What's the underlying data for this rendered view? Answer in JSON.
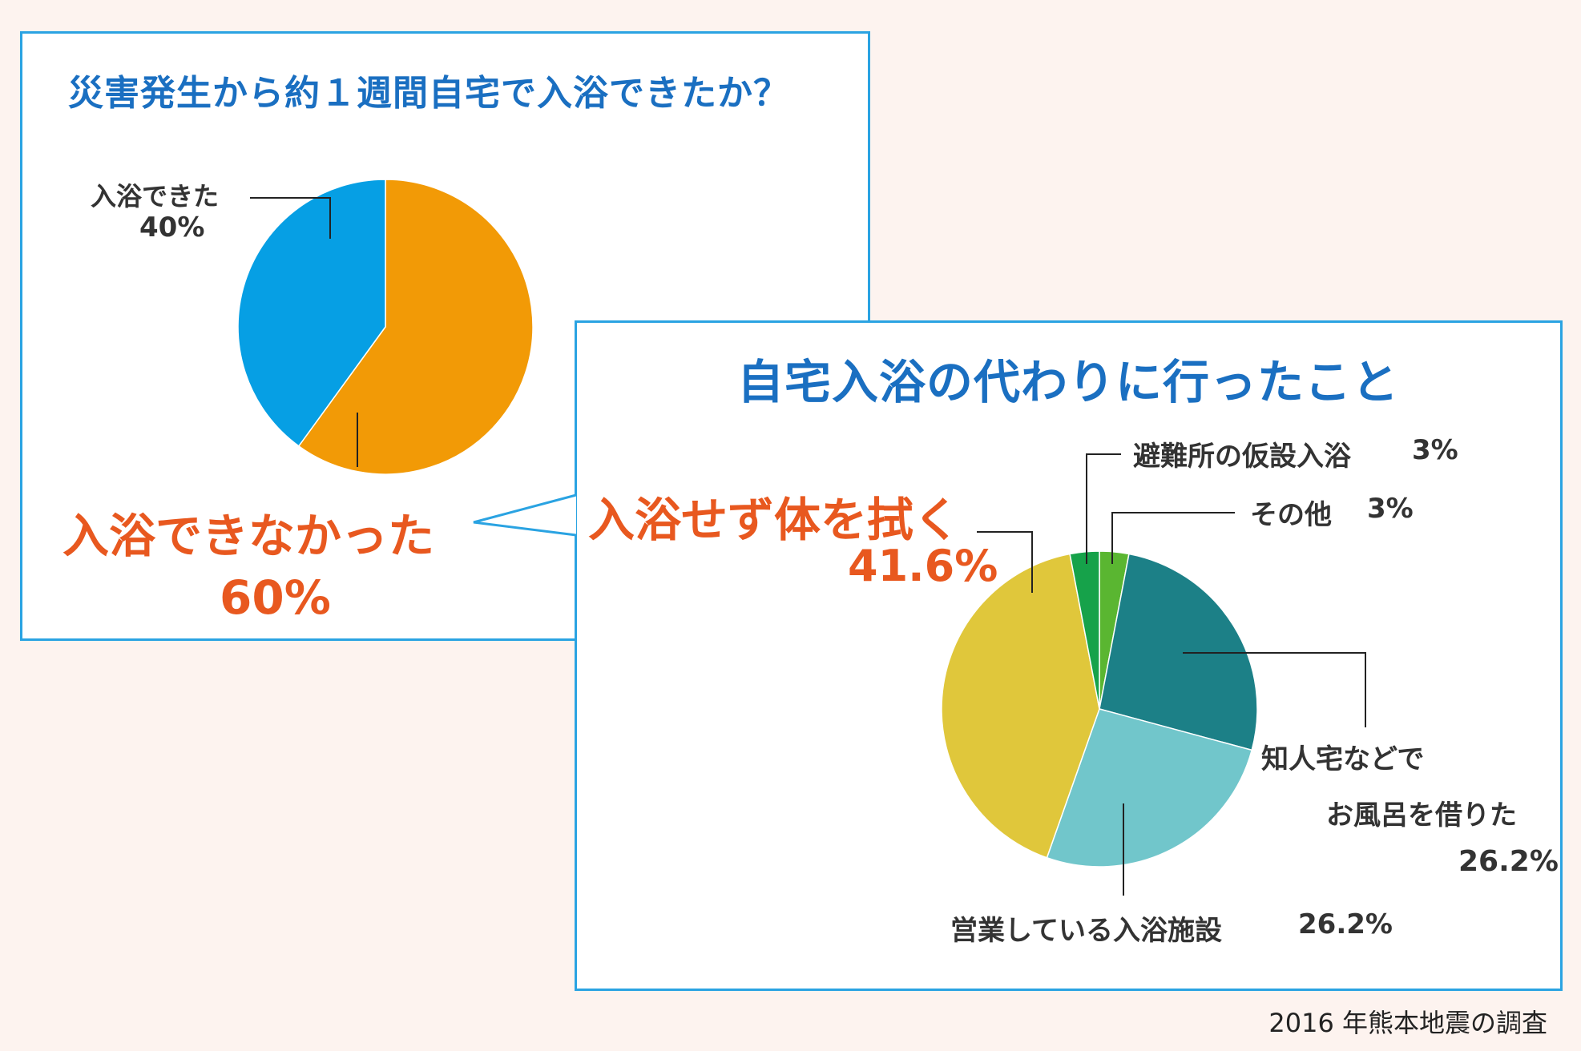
{
  "colors": {
    "panel_border": "#2aa3e2",
    "title": "#1a6fc1",
    "highlight": "#e8581f",
    "label": "#333333",
    "background": "#fdf3ef"
  },
  "chart_data": [
    {
      "type": "pie",
      "title": "災害発生から約１週間自宅で入浴できたか？",
      "slices": [
        {
          "label": "入浴できなかった",
          "value": 60,
          "value_label": "60%",
          "color": "#f29a06"
        },
        {
          "label": "入浴できた",
          "value": 40,
          "value_label": "40%",
          "color": "#069fe4"
        }
      ]
    },
    {
      "type": "pie",
      "title": "自宅入浴の代わりに行ったこと",
      "slices": [
        {
          "label": "その他",
          "value": 3,
          "value_label": "3%",
          "color": "#5ab631"
        },
        {
          "label": "知人宅などでお風呂を借りた",
          "label_lines": [
            "知人宅などで",
            "お風呂を借りた"
          ],
          "value": 26.2,
          "value_label": "26.2%",
          "color": "#1c8087"
        },
        {
          "label": "営業している入浴施設",
          "value": 26.2,
          "value_label": "26.2%",
          "color": "#71c6cb"
        },
        {
          "label": "入浴せず体を拭く",
          "value": 41.6,
          "value_label": "41.6%",
          "color": "#e0c73b"
        },
        {
          "label": "避難所の仮設入浴",
          "value": 3,
          "value_label": "3%",
          "color": "#16a24a"
        }
      ]
    }
  ],
  "footer": {
    "note": "2016 年熊本地震の調査"
  }
}
